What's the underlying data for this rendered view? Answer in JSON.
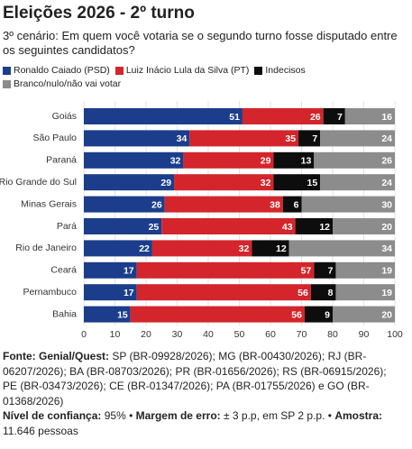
{
  "chart_data": {
    "type": "bar",
    "orientation": "horizontal",
    "stacked": true,
    "title": "Eleições 2026 - 2º turno",
    "subtitle": "3º cenário: Em quem você votaria se o segundo turno fosse disputado entre os seguintes candidatos?",
    "categories": [
      "Goiás",
      "São Paulo",
      "Paraná",
      "Rio Grande do Sul",
      "Minas Gerais",
      "Pará",
      "Rio de Janeiro",
      "Ceará",
      "Pernambuco",
      "Bahia"
    ],
    "series": [
      {
        "name": "Ronaldo Caiado (PSD)",
        "color": "#1b3d8c",
        "values": [
          51,
          34,
          32,
          29,
          26,
          25,
          22,
          17,
          17,
          15
        ]
      },
      {
        "name": "Luiz Inácio Lula da Silva (PT)",
        "color": "#d3252b",
        "values": [
          26,
          35,
          29,
          32,
          38,
          43,
          32,
          57,
          56,
          56
        ]
      },
      {
        "name": "Indecisos",
        "color": "#0d0d0d",
        "values": [
          7,
          7,
          13,
          15,
          6,
          12,
          12,
          7,
          8,
          9
        ]
      },
      {
        "name": "Branco/nulo/não vai votar",
        "color": "#8c8c8c",
        "values": [
          16,
          24,
          26,
          24,
          30,
          20,
          34,
          19,
          19,
          20
        ]
      }
    ],
    "xlim": [
      0,
      100
    ],
    "xticks": [
      0,
      10,
      20,
      30,
      40,
      50,
      60,
      70,
      80,
      90,
      100
    ],
    "grid": true,
    "footer": {
      "source_label": "Fonte: Genial/Quest:",
      "source_text": "SP (BR-09928/2026); MG (BR-00430/2026); RJ (BR-06207/2026); BA (BR-08703/2026); PR (BR-01656/2026); RS (BR-06915/2026); PE (BR-03473/2026); CE (BR-01347/2026); PA (BR-01755/2026) e GO (BR-01368/2026)",
      "confidence_label": "Nível de confiança:",
      "confidence_value": "95% •",
      "margin_label": "Margem de erro:",
      "margin_value": "± 3 p.p, em SP 2 p.p. •",
      "sample_label": "Amostra:",
      "sample_value": "11.646 pessoas"
    }
  }
}
